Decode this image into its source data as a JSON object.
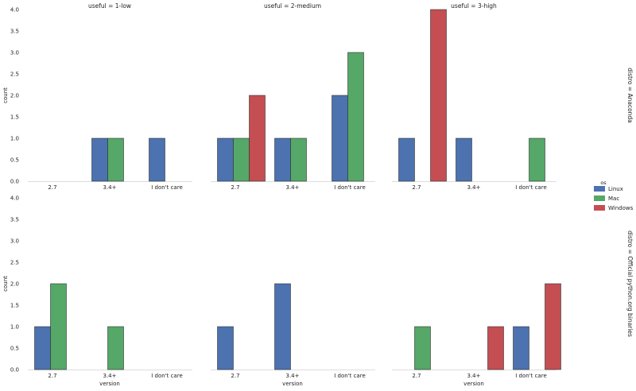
{
  "chart_data": {
    "type": "bar",
    "categories": [
      "2.7",
      "3.4+",
      "I don't care"
    ],
    "ylim": [
      0,
      4
    ],
    "yticks": [
      "0.0",
      "0.5",
      "1.0",
      "1.5",
      "2.0",
      "2.5",
      "3.0",
      "3.5",
      "4.0"
    ],
    "ylabel": "count",
    "xlabel": "version",
    "col_titles": [
      "useful = 1-low",
      "useful = 2-medium",
      "useful = 3-high"
    ],
    "row_titles": [
      "distro = Anaconda",
      "distro = Official python.org binaries"
    ],
    "legend": {
      "title": "os",
      "position": "right",
      "entries": [
        {
          "name": "Linux",
          "color": "#4c72b0"
        },
        {
          "name": "Mac",
          "color": "#55a868"
        },
        {
          "name": "Windows",
          "color": "#c44e52"
        }
      ]
    },
    "panels": [
      {
        "row": 0,
        "col": 0,
        "groups": [
          {
            "category": "2.7",
            "bars": []
          },
          {
            "category": "3.4+",
            "bars": [
              {
                "os": "Linux",
                "value": 1
              },
              {
                "os": "Mac",
                "value": 1
              }
            ]
          },
          {
            "category": "I don't care",
            "bars": [
              {
                "os": "Linux",
                "value": 1
              }
            ]
          }
        ]
      },
      {
        "row": 0,
        "col": 1,
        "groups": [
          {
            "category": "2.7",
            "bars": [
              {
                "os": "Linux",
                "value": 1
              },
              {
                "os": "Mac",
                "value": 1
              },
              {
                "os": "Windows",
                "value": 2
              }
            ]
          },
          {
            "category": "3.4+",
            "bars": [
              {
                "os": "Linux",
                "value": 1
              },
              {
                "os": "Mac",
                "value": 1
              }
            ]
          },
          {
            "category": "I don't care",
            "bars": [
              {
                "os": "Linux",
                "value": 2
              },
              {
                "os": "Mac",
                "value": 3
              }
            ]
          }
        ]
      },
      {
        "row": 0,
        "col": 2,
        "groups": [
          {
            "category": "2.7",
            "bars": [
              {
                "os": "Linux",
                "value": 1
              },
              {
                "os": "Windows",
                "value": 4
              }
            ]
          },
          {
            "category": "3.4+",
            "bars": [
              {
                "os": "Linux",
                "value": 1
              }
            ]
          },
          {
            "category": "I don't care",
            "bars": [
              {
                "os": "Mac",
                "value": 1
              }
            ]
          }
        ]
      },
      {
        "row": 1,
        "col": 0,
        "groups": [
          {
            "category": "2.7",
            "bars": [
              {
                "os": "Linux",
                "value": 1
              },
              {
                "os": "Mac",
                "value": 2
              }
            ]
          },
          {
            "category": "3.4+",
            "bars": [
              {
                "os": "Mac",
                "value": 1
              }
            ]
          },
          {
            "category": "I don't care",
            "bars": []
          }
        ]
      },
      {
        "row": 1,
        "col": 1,
        "groups": [
          {
            "category": "2.7",
            "bars": [
              {
                "os": "Linux",
                "value": 1
              }
            ]
          },
          {
            "category": "3.4+",
            "bars": [
              {
                "os": "Linux",
                "value": 2
              }
            ]
          },
          {
            "category": "I don't care",
            "bars": []
          }
        ]
      },
      {
        "row": 1,
        "col": 2,
        "groups": [
          {
            "category": "2.7",
            "bars": [
              {
                "os": "Mac",
                "value": 1
              }
            ]
          },
          {
            "category": "3.4+",
            "bars": [
              {
                "os": "Windows",
                "value": 1
              }
            ]
          },
          {
            "category": "I don't care",
            "bars": [
              {
                "os": "Linux",
                "value": 1
              },
              {
                "os": "Windows",
                "value": 2
              }
            ]
          }
        ]
      }
    ]
  }
}
